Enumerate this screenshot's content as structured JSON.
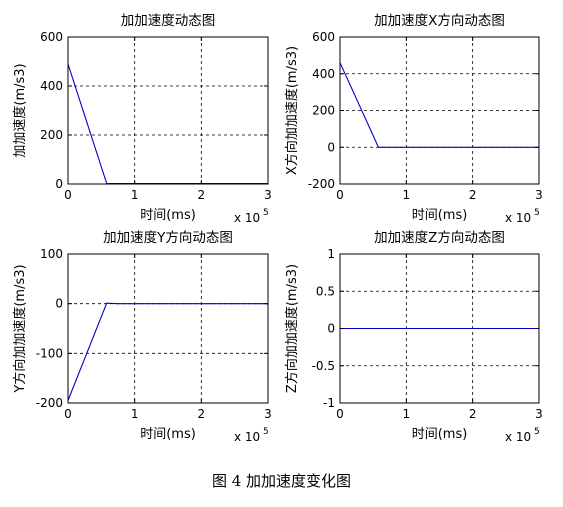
{
  "figure_caption": "图 4  加加速度变化图",
  "chart_data": [
    {
      "type": "line",
      "title": "加加速度动态图",
      "xlabel": "时间(ms)",
      "ylabel": "加加速度(m/s3)",
      "x_multiplier": "x 10",
      "x_multiplier_exp": "5",
      "xlim": [
        0,
        3
      ],
      "ylim": [
        0,
        600
      ],
      "xticks": [
        "0",
        "1",
        "2",
        "3"
      ],
      "yticks": [
        "0",
        "200",
        "400",
        "600"
      ],
      "grid": true,
      "line_color": "#0000cc",
      "series": [
        {
          "x": [
            0,
            0.58,
            3.0
          ],
          "y": [
            490,
            2,
            2
          ]
        }
      ]
    },
    {
      "type": "line",
      "title": "加加速度X方向动态图",
      "xlabel": "时间(ms)",
      "ylabel": "X方向加加速度(m/s3)",
      "x_multiplier": "x 10",
      "x_multiplier_exp": "5",
      "xlim": [
        0,
        3
      ],
      "ylim": [
        -200,
        600
      ],
      "xticks": [
        "0",
        "1",
        "2",
        "3"
      ],
      "yticks": [
        "-200",
        "0",
        "200",
        "400",
        "600"
      ],
      "grid": true,
      "line_color": "#0000cc",
      "series": [
        {
          "x": [
            0,
            0.58,
            3.0
          ],
          "y": [
            460,
            0,
            0
          ]
        }
      ]
    },
    {
      "type": "line",
      "title": "加加速度Y方向动态图",
      "xlabel": "时间(ms)",
      "ylabel": "Y方向加加速度(m/s3)",
      "x_multiplier": "x 10",
      "x_multiplier_exp": "5",
      "xlim": [
        0,
        3
      ],
      "ylim": [
        -200,
        100
      ],
      "xticks": [
        "0",
        "1",
        "2",
        "3"
      ],
      "yticks": [
        "-200",
        "-100",
        "0",
        "100"
      ],
      "grid": true,
      "line_color": "#0000cc",
      "series": [
        {
          "x": [
            0,
            0.58,
            0.75,
            2.2,
            3.0
          ],
          "y": [
            -195,
            1,
            0,
            0,
            0
          ]
        }
      ]
    },
    {
      "type": "line",
      "title": "加加速度Z方向动态图",
      "xlabel": "时间(ms)",
      "ylabel": "Z方向加加速度(m/s3)",
      "x_multiplier": "x 10",
      "x_multiplier_exp": "5",
      "xlim": [
        0,
        3
      ],
      "ylim": [
        -1,
        1
      ],
      "xticks": [
        "0",
        "1",
        "2",
        "3"
      ],
      "yticks": [
        "-1",
        "-0.5",
        "0",
        "0.5",
        "1"
      ],
      "grid": true,
      "line_color": "#0000cc",
      "series": [
        {
          "x": [
            0,
            3.0
          ],
          "y": [
            0,
            0
          ]
        }
      ]
    }
  ]
}
